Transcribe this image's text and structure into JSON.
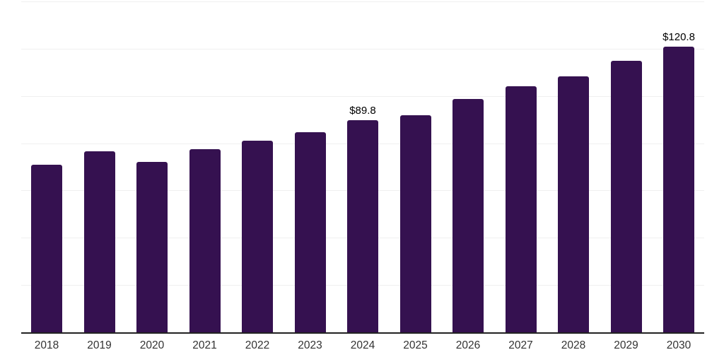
{
  "chart_data": {
    "type": "bar",
    "categories": [
      "2018",
      "2019",
      "2020",
      "2021",
      "2022",
      "2023",
      "2024",
      "2025",
      "2026",
      "2027",
      "2028",
      "2029",
      "2030"
    ],
    "values": [
      71.0,
      76.5,
      72.2,
      77.5,
      81.2,
      84.6,
      89.8,
      91.8,
      98.6,
      104.0,
      108.3,
      114.9,
      120.8
    ],
    "data_labels": [
      "",
      "",
      "",
      "",
      "",
      "",
      "$89.8",
      "",
      "",
      "",
      "",
      "",
      "$120.8"
    ],
    "ylim": [
      0,
      140
    ],
    "gridline_step": 20,
    "grid": "horizontal-only",
    "legend": "none",
    "y_axis_tick_labels_visible": false,
    "colors": {
      "bar": "#351150",
      "gridline": "#f0f0f0",
      "axis_line": "#222222",
      "value_label": "#000000",
      "tick_label": "#333333"
    }
  }
}
